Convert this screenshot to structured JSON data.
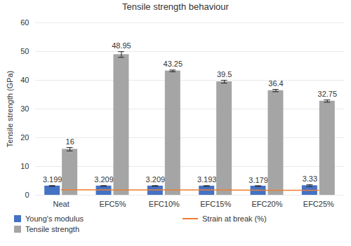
{
  "chart_data": {
    "type": "bar",
    "title": "Tensile strength behaviour",
    "y_label": "Tensile strength (GPa)",
    "categories": [
      "Neat",
      "EFC5%",
      "EFC10%",
      "EFC15%",
      "EFC20%",
      "EFC25%"
    ],
    "series": [
      {
        "name": "Young's modulus",
        "type": "bar",
        "color": "#4472c4",
        "data_labels": true,
        "values": [
          3.199,
          3.209,
          3.209,
          3.193,
          3.179,
          3.33
        ],
        "errors": [
          0.15,
          0.12,
          0.12,
          0.12,
          0.12,
          0.3
        ]
      },
      {
        "name": "Tensile strength",
        "type": "bar",
        "color": "#a5a5a5",
        "data_labels": true,
        "values": [
          16,
          48.95,
          43.25,
          39.5,
          36.4,
          32.75
        ],
        "errors": [
          0.6,
          1.0,
          0.3,
          0.5,
          0.4,
          0.4
        ]
      },
      {
        "name": "Strain at break (%)",
        "type": "line",
        "color": "#ed7d31",
        "data_labels": false,
        "values": [
          1.9,
          1.8,
          1.8,
          1.8,
          1.7,
          1.7
        ]
      }
    ],
    "ylim": [
      0,
      60
    ],
    "yticks": [
      0,
      10,
      20,
      30,
      40,
      50,
      60
    ],
    "grid": true,
    "legend": "bottom"
  }
}
